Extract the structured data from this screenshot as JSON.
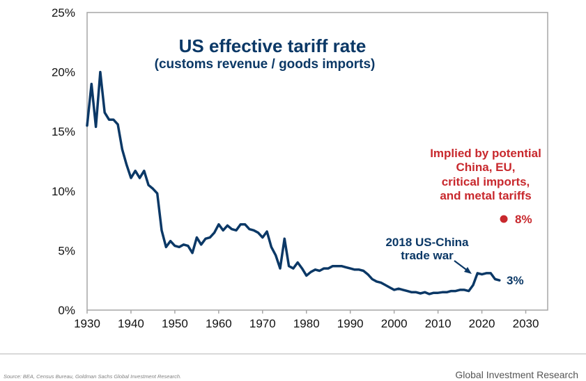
{
  "chart_data": {
    "type": "line",
    "title": "US effective tariff rate",
    "subtitle": "(customs revenue / goods imports)",
    "xlabel": "",
    "ylabel": "",
    "xlim": [
      1930,
      2035
    ],
    "ylim": [
      0,
      25
    ],
    "x_ticks": [
      1930,
      1940,
      1950,
      1960,
      1970,
      1980,
      1990,
      2000,
      2010,
      2020,
      2030
    ],
    "x_tick_labels": [
      "1930",
      "1940",
      "1950",
      "1960",
      "1970",
      "1980",
      "1990",
      "2000",
      "2010",
      "2020",
      "2030"
    ],
    "y_ticks": [
      0,
      5,
      10,
      15,
      20,
      25
    ],
    "y_tick_labels": [
      "0%",
      "5%",
      "10%",
      "15%",
      "20%",
      "25%"
    ],
    "grid": false,
    "colors": {
      "line": "#0b3866",
      "projection": "#c8282d",
      "axis": "#a6a6a6"
    },
    "series": [
      {
        "name": "US effective tariff rate",
        "x": [
          1930,
          1931,
          1932,
          1933,
          1934,
          1935,
          1936,
          1937,
          1938,
          1939,
          1940,
          1941,
          1942,
          1943,
          1944,
          1945,
          1946,
          1947,
          1948,
          1949,
          1950,
          1951,
          1952,
          1953,
          1954,
          1955,
          1956,
          1957,
          1958,
          1959,
          1960,
          1961,
          1962,
          1963,
          1964,
          1965,
          1966,
          1967,
          1968,
          1969,
          1970,
          1971,
          1972,
          1973,
          1974,
          1975,
          1976,
          1977,
          1978,
          1979,
          1980,
          1981,
          1982,
          1983,
          1984,
          1985,
          1986,
          1987,
          1988,
          1989,
          1990,
          1991,
          1992,
          1993,
          1994,
          1995,
          1996,
          1997,
          1998,
          1999,
          2000,
          2001,
          2002,
          2003,
          2004,
          2005,
          2006,
          2007,
          2008,
          2009,
          2010,
          2011,
          2012,
          2013,
          2014,
          2015,
          2016,
          2017,
          2018,
          2019,
          2020,
          2021,
          2022,
          2023,
          2024
        ],
        "values": [
          15.5,
          19.0,
          15.4,
          20.0,
          16.6,
          16.0,
          16.0,
          15.6,
          13.5,
          12.2,
          11.1,
          11.7,
          11.1,
          11.7,
          10.5,
          10.2,
          9.8,
          6.7,
          5.3,
          5.8,
          5.4,
          5.3,
          5.5,
          5.4,
          4.8,
          6.1,
          5.5,
          6.0,
          6.1,
          6.5,
          7.2,
          6.7,
          7.1,
          6.8,
          6.7,
          7.2,
          7.2,
          6.8,
          6.7,
          6.5,
          6.1,
          6.6,
          5.3,
          4.6,
          3.5,
          6.0,
          3.7,
          3.5,
          4.0,
          3.5,
          2.9,
          3.2,
          3.4,
          3.3,
          3.5,
          3.5,
          3.7,
          3.7,
          3.7,
          3.6,
          3.5,
          3.4,
          3.4,
          3.3,
          3.0,
          2.6,
          2.4,
          2.3,
          2.1,
          1.9,
          1.7,
          1.8,
          1.7,
          1.6,
          1.5,
          1.5,
          1.4,
          1.5,
          1.35,
          1.45,
          1.45,
          1.5,
          1.5,
          1.6,
          1.6,
          1.7,
          1.7,
          1.6,
          2.1,
          3.1,
          3.0,
          3.1,
          3.1,
          2.6,
          2.5
        ]
      },
      {
        "name": "Implied by potential China, EU, critical imports, and metal tariffs",
        "x": [
          2025
        ],
        "values": [
          7.65
        ]
      }
    ],
    "annotations": {
      "trade_war_lines": [
        "2018 US-China",
        "trade war"
      ],
      "current_label": "3%",
      "implied_lines": [
        "Implied by potential",
        "China, EU,",
        "critical imports,",
        "and metal tariffs"
      ],
      "implied_label": "8%"
    },
    "legend": "none"
  },
  "footer": {
    "source": "Source: BEA, Census Bureau, Goldman Sachs Global Investment Research.",
    "brand": "Global Investment Research"
  }
}
